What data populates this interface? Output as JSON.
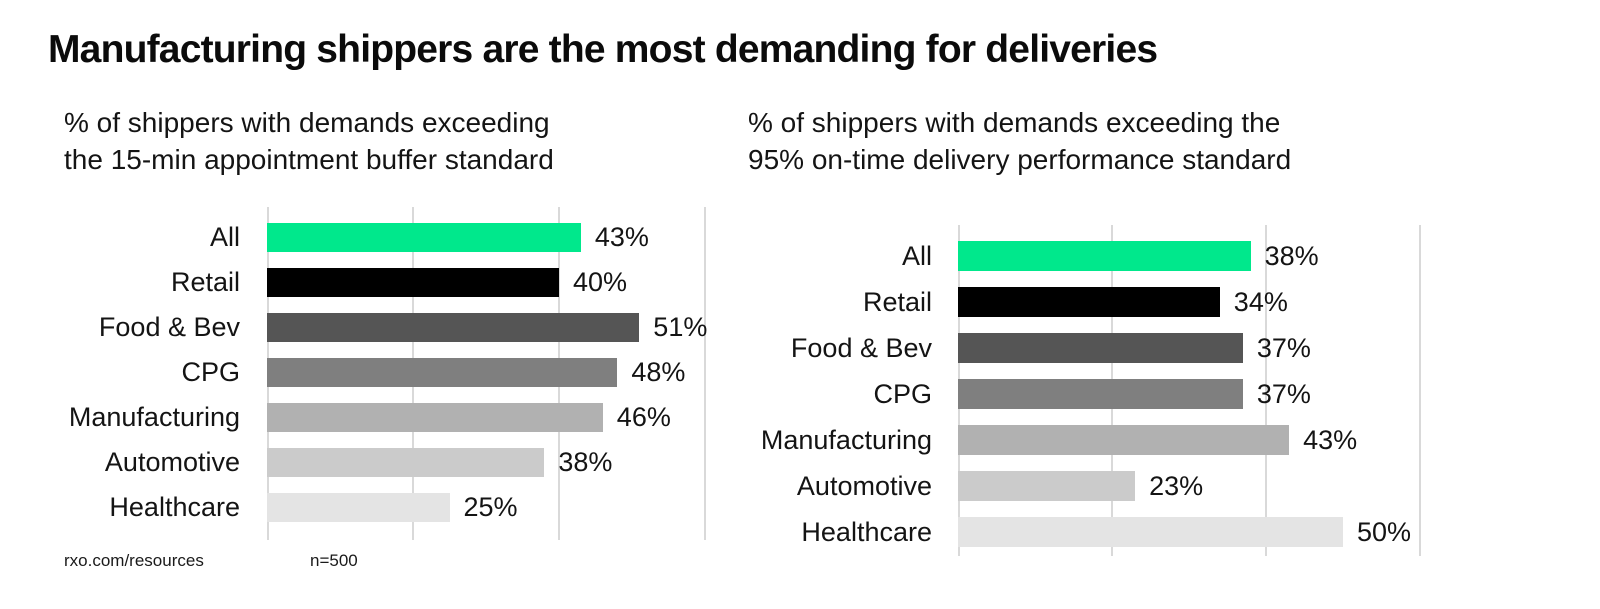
{
  "page": {
    "title": "Manufacturing shippers are the most demanding for deliveries"
  },
  "footer": {
    "source": "rxo.com/resources",
    "sample_size": "n=500"
  },
  "colors": {
    "accent_green": "#00E88C",
    "gridline": "#d9d9d9",
    "text": "#141414",
    "background": "#ffffff",
    "bar_colors": [
      "#00E88C",
      "#000000",
      "#555555",
      "#7F7F7F",
      "#B1B1B1",
      "#CBCBCB",
      "#E4E4E4"
    ]
  },
  "chart_data": [
    {
      "type": "bar",
      "orientation": "horizontal",
      "title_lines": [
        "% of shippers with demands exceeding",
        "the 15-min appointment buffer standard"
      ],
      "categories": [
        "All",
        "Retail",
        "Food & Bev",
        "CPG",
        "Manufacturing",
        "Automotive",
        "Healthcare"
      ],
      "values": [
        43,
        40,
        51,
        48,
        46,
        38,
        25
      ],
      "value_labels": [
        "43%",
        "40%",
        "51%",
        "48%",
        "46%",
        "38%",
        "25%"
      ],
      "xlim": [
        0,
        60
      ],
      "gridlines_pct": [
        20,
        40,
        60
      ],
      "grid": "vertical-lines",
      "legend": "none",
      "bar_colors": [
        "#00E88C",
        "#000000",
        "#555555",
        "#7F7F7F",
        "#B1B1B1",
        "#CBCBCB",
        "#E4E4E4"
      ]
    },
    {
      "type": "bar",
      "orientation": "horizontal",
      "title_lines": [
        "% of shippers with demands exceeding the",
        "95% on-time delivery performance standard"
      ],
      "categories": [
        "All",
        "Retail",
        "Food & Bev",
        "CPG",
        "Manufacturing",
        "Automotive",
        "Healthcare"
      ],
      "values": [
        38,
        34,
        37,
        37,
        43,
        23,
        50
      ],
      "value_labels": [
        "38%",
        "34%",
        "37%",
        "37%",
        "43%",
        "23%",
        "50%"
      ],
      "xlim": [
        0,
        60
      ],
      "gridlines_pct": [
        20,
        40,
        60
      ],
      "grid": "vertical-lines",
      "legend": "none",
      "bar_colors": [
        "#00E88C",
        "#000000",
        "#555555",
        "#7F7F7F",
        "#B1B1B1",
        "#CBCBCB",
        "#E4E4E4"
      ]
    }
  ]
}
